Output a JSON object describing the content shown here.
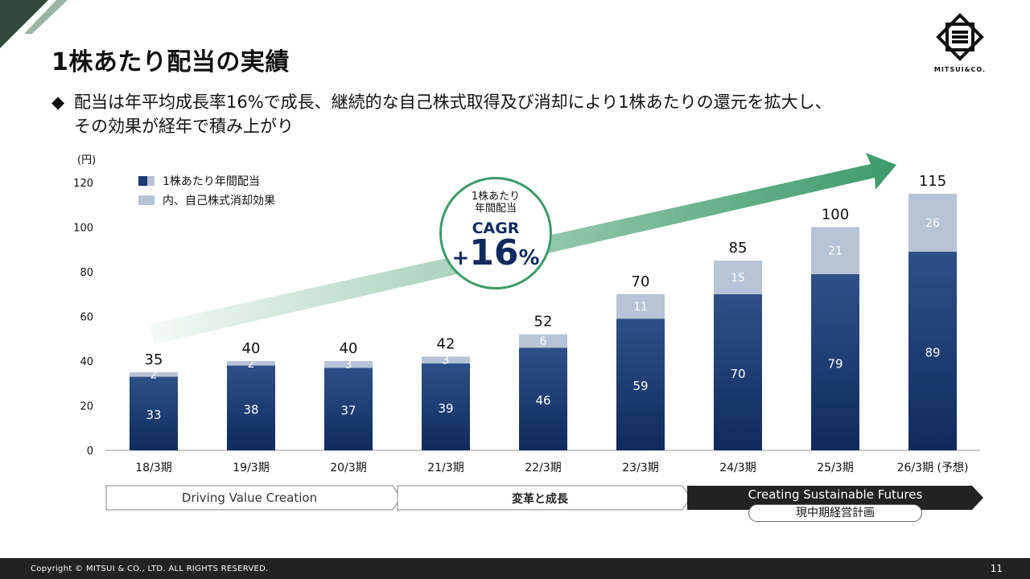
{
  "page": {
    "title": "1株あたり配当の実績",
    "bullet_marker": "◆",
    "bullet_line1": "配当は年平均成長率16%で成長、継続的な自己株式取得及び消却により1株あたりの還元を拡大し、",
    "bullet_line2": "その効果が経年で積み上がり",
    "logo_text": "MITSUI&CO.",
    "footer": "Copyright © MITSUI & CO., LTD. ALL RIGHTS RESERVED.",
    "page_number": "11"
  },
  "colors": {
    "bar_main_top": "#2e5088",
    "bar_main_bottom": "#0f2a5e",
    "bar_buyback": "#b7c3d6",
    "arrow": "#3d9a6a",
    "dark_phase": "#222222"
  },
  "cagr": {
    "line1": "1株あたり",
    "line2": "年間配当",
    "label": "CAGR",
    "sign": "+",
    "value": "16",
    "unit": "%"
  },
  "phases": [
    {
      "label": "Driving Value Creation"
    },
    {
      "label": "変革と成長"
    },
    {
      "label": "Creating Sustainable Futures",
      "sublabel": "現中期経営計画"
    }
  ],
  "chart_data": {
    "type": "bar",
    "stacked": true,
    "unit_label": "(円)",
    "categories": [
      "18/3期",
      "19/3期",
      "20/3期",
      "21/3期",
      "22/3期",
      "23/3期",
      "24/3期",
      "25/3期",
      "26/3期 (予想)"
    ],
    "series": [
      {
        "name": "1株あたり年間配当",
        "values": [
          33,
          38,
          37,
          39,
          46,
          59,
          70,
          79,
          89
        ]
      },
      {
        "name": "内、自己株式消却効果",
        "values": [
          2,
          2,
          3,
          3,
          6,
          11,
          15,
          21,
          26
        ]
      }
    ],
    "totals": [
      35,
      40,
      40,
      42,
      52,
      70,
      85,
      100,
      115
    ],
    "ylim": [
      0,
      120
    ],
    "yticks": [
      0,
      20,
      40,
      60,
      80,
      100,
      120
    ],
    "legend": [
      "1株あたり年間配当",
      "内、自己株式消却効果"
    ]
  }
}
